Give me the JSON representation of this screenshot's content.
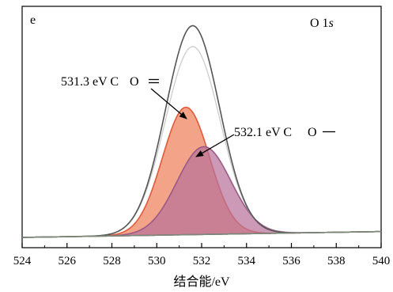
{
  "chart_data": {
    "type": "area",
    "panel_label": "e",
    "title_main": "O 1",
    "title_italic": "s",
    "xlabel": "结合能/eV",
    "ylabel": "",
    "xlim": [
      524,
      540
    ],
    "ylim": [
      0,
      1.0
    ],
    "xticks": [
      "524",
      "526",
      "528",
      "530",
      "532",
      "534",
      "536",
      "538",
      "540"
    ],
    "grid": false,
    "series": [
      {
        "name": "531.3 eV C═O",
        "label_value": "531.3 eV C",
        "label_bond": "O",
        "center": 531.3,
        "height": 0.61,
        "sigma": 1.05,
        "fill": "#f2997a",
        "stroke": "#e05a3a"
      },
      {
        "name": "532.1 eV C—O",
        "label_value": "532.1 eV C",
        "label_bond": "O",
        "center": 532.1,
        "height": 0.42,
        "sigma": 1.2,
        "fill": "#b9729a",
        "stroke": "#9a5a87"
      }
    ],
    "raw_curve": {
      "center": 531.6,
      "height": 1.0,
      "sigma": 1.2,
      "stroke": "#555555"
    },
    "fit_curve": {
      "center": 531.6,
      "height": 0.9,
      "sigma": 1.22,
      "stroke": "#c8c8c8"
    },
    "baseline": {
      "start": 0.0,
      "end": 0.028,
      "stroke": "#7a8a7a"
    }
  }
}
